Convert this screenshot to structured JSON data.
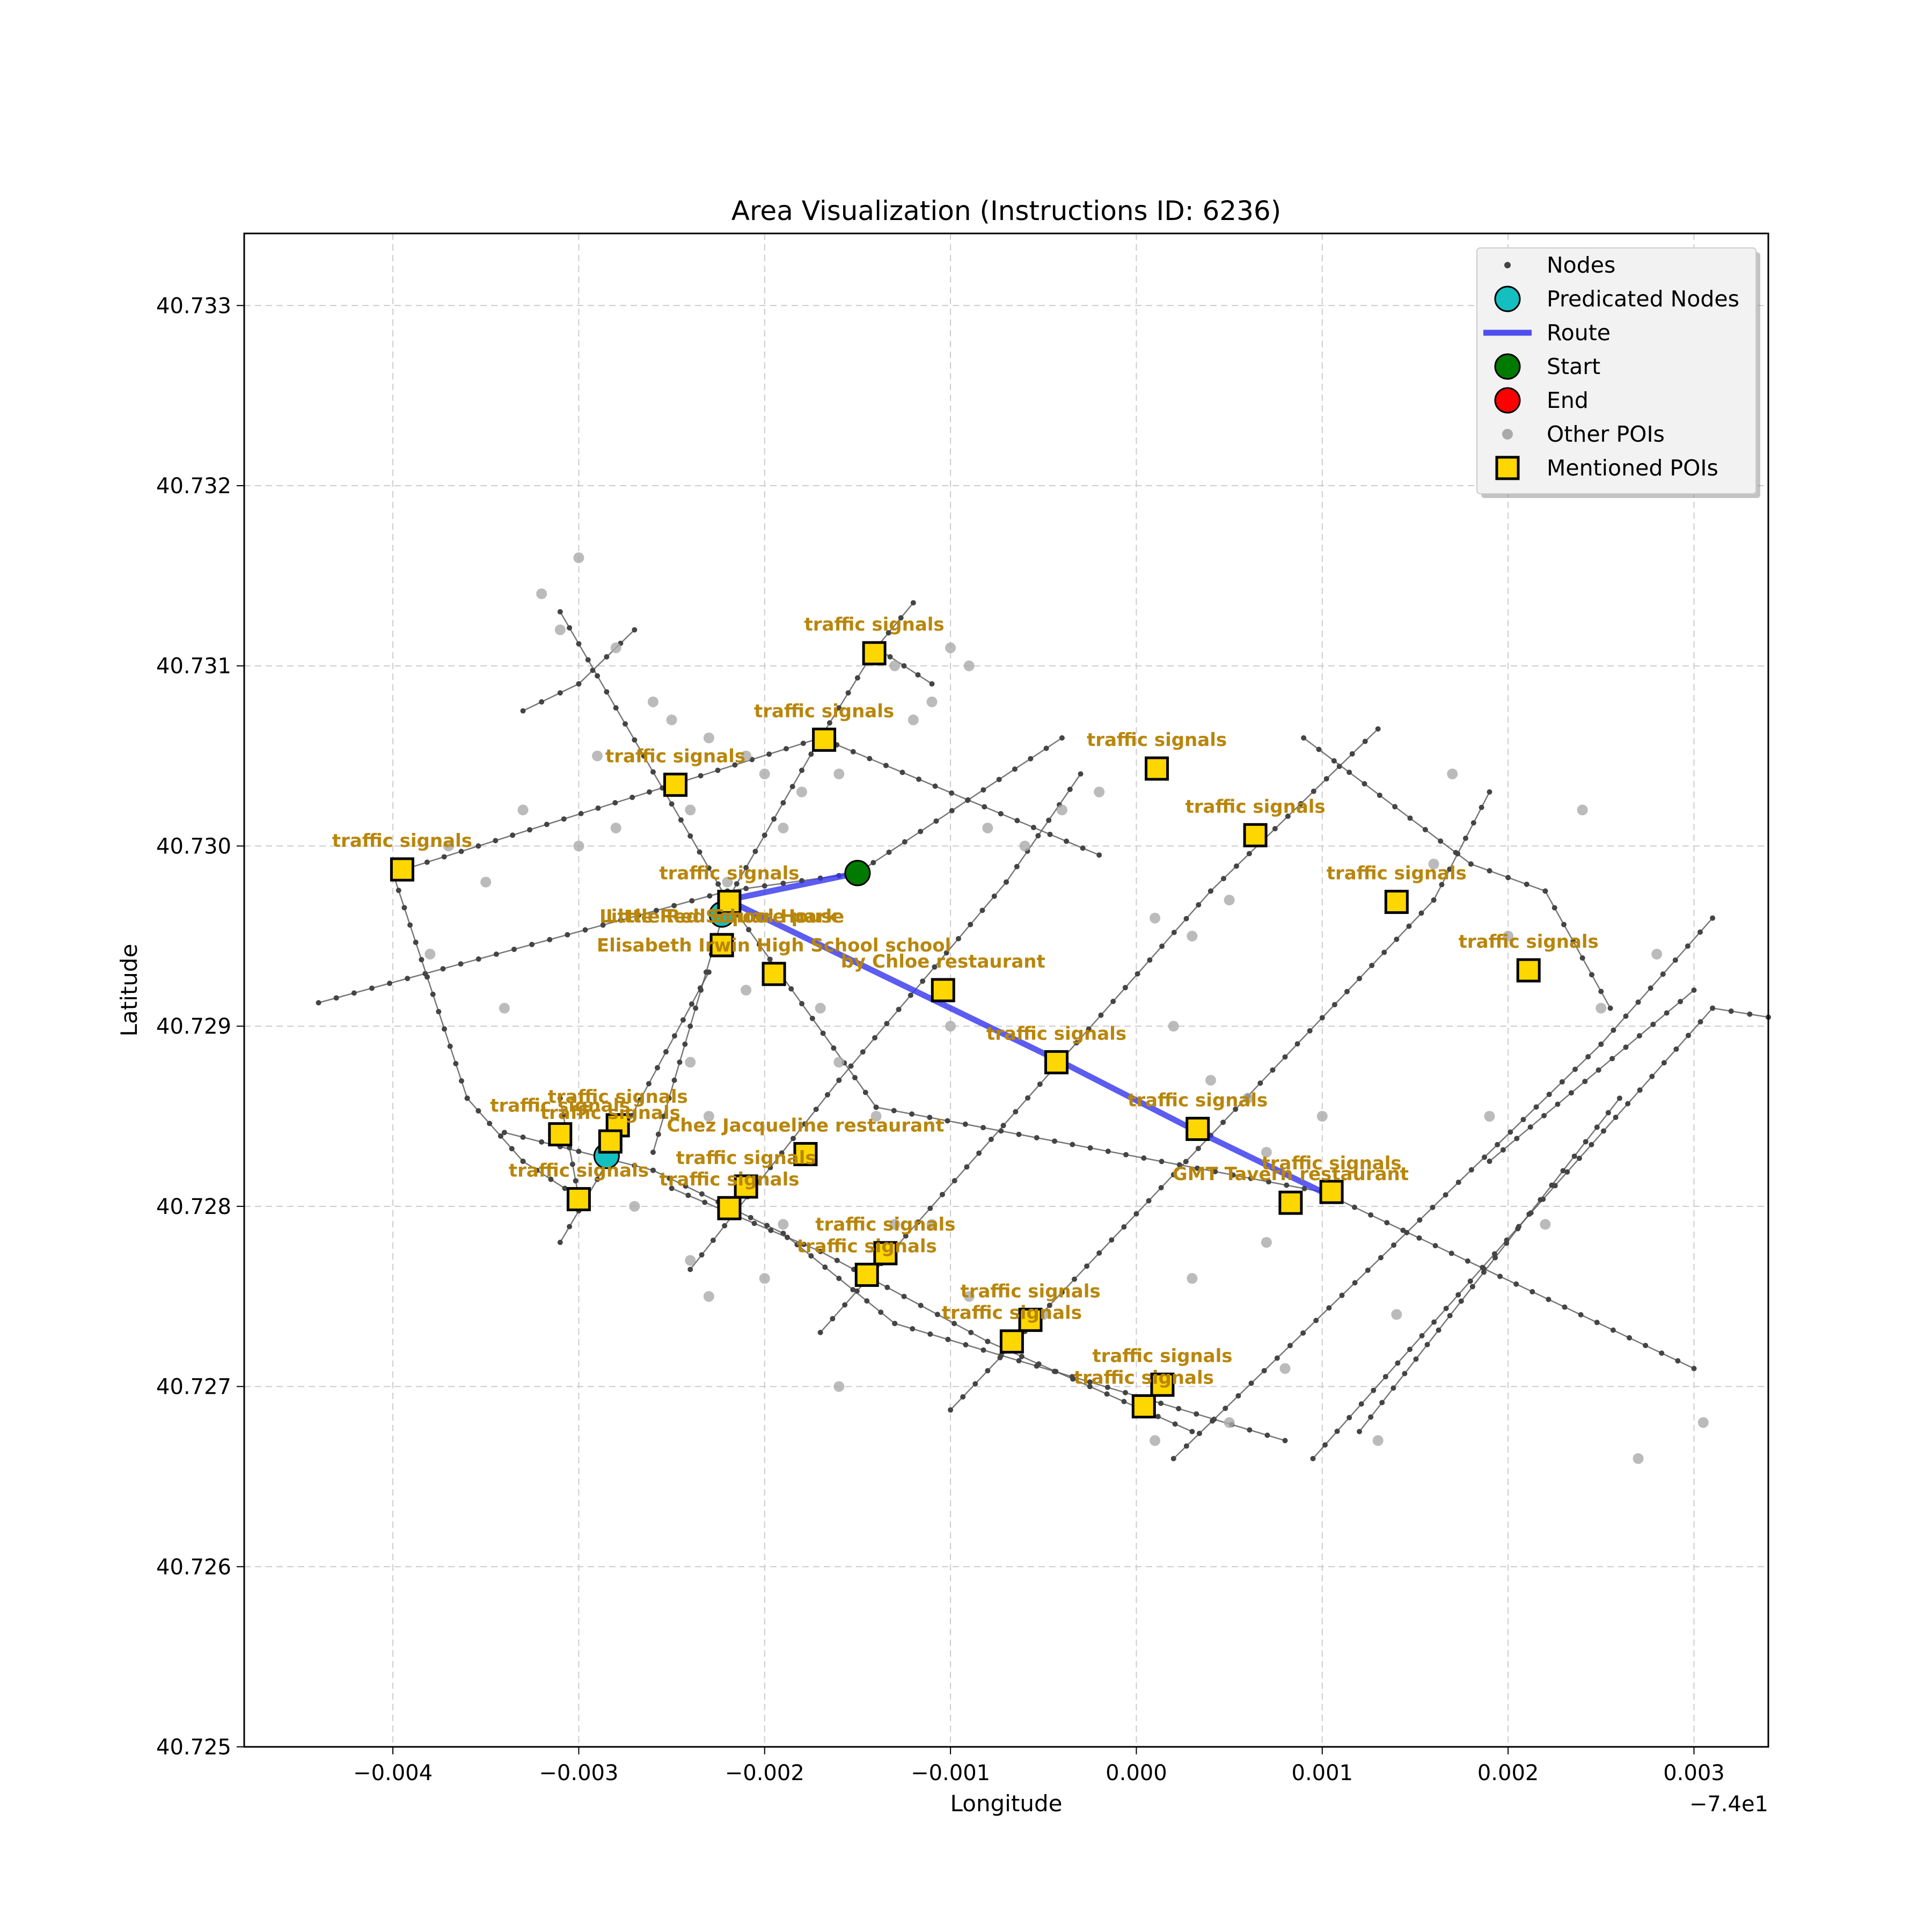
{
  "title": "Area Visualization (Instructions ID: 6236)",
  "xlabel": "Longitude",
  "ylabel": "Latitude",
  "x_offset_label": "−7.4e1",
  "x_ticks": [
    "−0.004",
    "−0.003",
    "−0.002",
    "−0.001",
    "0.000",
    "0.001",
    "0.002",
    "0.003"
  ],
  "y_ticks": [
    "40.725",
    "40.726",
    "40.727",
    "40.728",
    "40.729",
    "40.730",
    "40.731",
    "40.732",
    "40.733"
  ],
  "legend": {
    "placement": "top-right",
    "items": [
      {
        "label": "Nodes",
        "icon": "small-dark-dot"
      },
      {
        "label": "Predicated Nodes",
        "icon": "cyan-circle"
      },
      {
        "label": "Route",
        "icon": "blue-line"
      },
      {
        "label": "Start",
        "icon": "green-circle"
      },
      {
        "label": "End",
        "icon": "red-circle"
      },
      {
        "label": "Other POIs",
        "icon": "gray-dot"
      },
      {
        "label": "Mentioned POIs",
        "icon": "gold-square"
      }
    ]
  },
  "colors": {
    "route": "#3333ee",
    "start": "#007a00",
    "end": "#ff0000",
    "predicted": "#14bfbf",
    "poi_fill": "#ffd700",
    "poi_label": "#b8860b",
    "node": "#444444",
    "other_poi": "#aaaaaa",
    "grid": "#cccccc"
  },
  "chart_data": {
    "type": "scatter",
    "xlim": [
      -74.0048,
      -73.9966
    ],
    "ylim": [
      40.725,
      40.7334
    ],
    "x_offset": -74,
    "grid": true,
    "route": [
      [
        -74.0015,
        40.72985
      ],
      [
        -74.0022,
        40.7297
      ],
      [
        -74.0004,
        40.7288
      ],
      [
        -73.9997,
        40.72843
      ],
      [
        -73.999,
        40.72808
      ]
    ],
    "start": [
      -74.0015,
      40.72985
    ],
    "end": null,
    "predicted_nodes": [
      [
        -74.00223,
        40.72962
      ],
      [
        -74.00285,
        40.72828
      ]
    ],
    "mentioned_pois": [
      {
        "label": "traffic signals",
        "lon": -74.00395,
        "lat": 40.72987
      },
      {
        "label": "traffic signals",
        "lon": -74.00248,
        "lat": 40.73034
      },
      {
        "label": "traffic signals",
        "lon": -74.00168,
        "lat": 40.73059
      },
      {
        "label": "traffic signals",
        "lon": -74.00141,
        "lat": 40.73107
      },
      {
        "label": "traffic signals",
        "lon": -73.99989,
        "lat": 40.73043
      },
      {
        "label": "traffic signals",
        "lon": -73.99936,
        "lat": 40.73006
      },
      {
        "label": "traffic signals",
        "lon": -73.9986,
        "lat": 40.72969
      },
      {
        "label": "traffic signals",
        "lon": -73.99789,
        "lat": 40.72931
      },
      {
        "label": "traffic signals",
        "lon": -74.00219,
        "lat": 40.72969
      },
      {
        "label": "Little Red Square   park",
        "lon": -74.00223,
        "lat": 40.72945
      },
      {
        "label": "Little Red School House",
        "lon": -74.00223,
        "lat": 40.72945
      },
      {
        "label": "Elisabeth Irwin High School school",
        "lon": -74.00195,
        "lat": 40.72929
      },
      {
        "label": "by Chloe restaurant",
        "lon": -74.00104,
        "lat": 40.7292
      },
      {
        "label": "traffic signals",
        "lon": -74.00043,
        "lat": 40.7288
      },
      {
        "label": "traffic signals",
        "lon": -73.99967,
        "lat": 40.72843
      },
      {
        "label": "traffic signals",
        "lon": -73.99895,
        "lat": 40.72808
      },
      {
        "label": "GMT Tavern restaurant",
        "lon": -73.99917,
        "lat": 40.72802
      },
      {
        "label": "traffic signals",
        "lon": -74.0031,
        "lat": 40.7284
      },
      {
        "label": "traffic signals",
        "lon": -74.00279,
        "lat": 40.72845
      },
      {
        "label": "traffic signals",
        "lon": -74.00283,
        "lat": 40.72836
      },
      {
        "label": "traffic signals",
        "lon": -74.003,
        "lat": 40.72804
      },
      {
        "label": "Chez Jacqueline restaurant",
        "lon": -74.00178,
        "lat": 40.72829
      },
      {
        "label": "traffic signals",
        "lon": -74.0021,
        "lat": 40.72811
      },
      {
        "label": "traffic signals",
        "lon": -74.00219,
        "lat": 40.72799
      },
      {
        "label": "traffic signals",
        "lon": -74.00135,
        "lat": 40.72774
      },
      {
        "label": "traffic signals",
        "lon": -74.00145,
        "lat": 40.72762
      },
      {
        "label": "traffic signals",
        "lon": -74.00057,
        "lat": 40.72737
      },
      {
        "label": "traffic signals",
        "lon": -74.00067,
        "lat": 40.72725
      },
      {
        "label": "traffic signals",
        "lon": -73.99986,
        "lat": 40.72701
      },
      {
        "label": "traffic signals",
        "lon": -73.99996,
        "lat": 40.72689
      }
    ],
    "streets": [
      [
        [
          -74.0044,
          40.72913
        ],
        [
          -74.0022,
          40.72975
        ],
        [
          -74.0015,
          40.72985
        ],
        [
          -74.0004,
          40.7306
        ]
      ],
      [
        [
          -74.004,
          40.72985
        ],
        [
          -74.0017,
          40.7306
        ],
        [
          -74.0002,
          40.72995
        ]
      ],
      [
        [
          -74.0031,
          40.7313
        ],
        [
          -74.0022,
          40.7297
        ],
        [
          -74.0014,
          40.72855
        ],
        [
          -73.999,
          40.72808
        ],
        [
          -73.997,
          40.7271
        ]
      ],
      [
        [
          -74.0033,
          40.73075
        ],
        [
          -74.003,
          40.7309
        ],
        [
          -74.0027,
          40.7312
        ]
      ],
      [
        [
          -74.004,
          40.72985
        ],
        [
          -74.0036,
          40.7286
        ],
        [
          -74.0033,
          40.72825
        ],
        [
          -74.003,
          40.72805
        ],
        [
          -74.0031,
          40.7286
        ]
      ],
      [
        [
          -74.0034,
          40.72841
        ],
        [
          -74.0026,
          40.7282
        ],
        [
          -74.0019,
          40.72785
        ],
        [
          -74.0013,
          40.72735
        ],
        [
          -73.9992,
          40.7267
        ]
      ],
      [
        [
          -74.0025,
          40.7281
        ],
        [
          -74.0017,
          40.72775
        ],
        [
          -74.0008,
          40.72725
        ],
        [
          -73.9997,
          40.72675
        ]
      ],
      [
        [
          -74.0023,
          40.7293
        ],
        [
          -74.0029,
          40.72815
        ],
        [
          -74.0031,
          40.7278
        ]
      ],
      [
        [
          -74.0026,
          40.7283
        ],
        [
          -74.0022,
          40.7297
        ],
        [
          -74.0017,
          40.7306
        ],
        [
          -74.0014,
          40.7311
        ],
        [
          -74.0012,
          40.73135
        ]
      ],
      [
        [
          -74.0014,
          40.7311
        ],
        [
          -74.0011,
          40.7309
        ]
      ],
      [
        [
          -74.0024,
          40.72765
        ],
        [
          -74.0016,
          40.7287
        ],
        [
          -74.0007,
          40.7298
        ],
        [
          -74.0003,
          40.7304
        ]
      ],
      [
        [
          -74.0017,
          40.7273
        ],
        [
          -73.9996,
          40.72975
        ],
        [
          -73.9987,
          40.73065
        ]
      ],
      [
        [
          -73.9991,
          40.7306
        ],
        [
          -73.9982,
          40.7299
        ],
        [
          -73.9978,
          40.72975
        ],
        [
          -73.99745,
          40.7291
        ]
      ],
      [
        [
          -74.001,
          40.72687
        ],
        [
          -73.9984,
          40.7297
        ],
        [
          -73.9981,
          40.7303
        ]
      ],
      [
        [
          -73.9998,
          40.7266
        ],
        [
          -73.9975,
          40.7289
        ],
        [
          -73.9969,
          40.7296
        ]
      ],
      [
        [
          -73.99905,
          40.7266
        ],
        [
          -73.9969,
          40.7291
        ],
        [
          -73.9966,
          40.72905
        ]
      ],
      [
        [
          -73.9988,
          40.72675
        ],
        [
          -73.9974,
          40.7286
        ]
      ],
      [
        [
          -73.9981,
          40.72825
        ],
        [
          -73.997,
          40.7292
        ]
      ]
    ],
    "other_pois": [
      [
        -74.0032,
        40.7314
      ],
      [
        -74.0031,
        40.7312
      ],
      [
        -74.003,
        40.7316
      ],
      [
        -74.0029,
        40.7305
      ],
      [
        -74.0028,
        40.7311
      ],
      [
        -74.0026,
        40.7308
      ],
      [
        -74.0025,
        40.7307
      ],
      [
        -74.0023,
        40.7306
      ],
      [
        -74.0021,
        40.7305
      ],
      [
        -74.002,
        40.7304
      ],
      [
        -74.0018,
        40.7303
      ],
      [
        -74.0016,
        40.7304
      ],
      [
        -74.0013,
        40.731
      ],
      [
        -74.0012,
        40.7307
      ],
      [
        -74.001,
        40.7311
      ],
      [
        -74.0011,
        40.7308
      ],
      [
        -74.0009,
        40.731
      ],
      [
        -74.0037,
        40.73
      ],
      [
        -74.0035,
        40.7298
      ],
      [
        -74.0033,
        40.7302
      ],
      [
        -74.003,
        40.73
      ],
      [
        -74.0028,
        40.7301
      ],
      [
        -74.0024,
        40.7302
      ],
      [
        -74.0022,
        40.7298
      ],
      [
        -74.0019,
        40.7301
      ],
      [
        -74.0024,
        40.7288
      ],
      [
        -74.0023,
        40.7285
      ],
      [
        -74.0021,
        40.7292
      ],
      [
        -74.0017,
        40.7291
      ],
      [
        -74.0016,
        40.7288
      ],
      [
        -74.0034,
        40.7291
      ],
      [
        -74.0038,
        40.7294
      ],
      [
        -74.0027,
        40.728
      ],
      [
        -74.0024,
        40.7277
      ],
      [
        -74.0023,
        40.7275
      ],
      [
        -74.002,
        40.7276
      ],
      [
        -74.0018,
        40.7283
      ],
      [
        -74.0014,
        40.7285
      ],
      [
        -74.0013,
        40.7279
      ],
      [
        -74.001,
        40.729
      ],
      [
        -74.0008,
        40.7301
      ],
      [
        -74.0006,
        40.73
      ],
      [
        -74.0004,
        40.7302
      ],
      [
        -74.0002,
        40.7303
      ],
      [
        -73.9999,
        40.7296
      ],
      [
        -73.9997,
        40.7295
      ],
      [
        -73.9995,
        40.7297
      ],
      [
        -73.9998,
        40.729
      ],
      [
        -73.9996,
        40.7287
      ],
      [
        -73.9994,
        40.7286
      ],
      [
        -73.9993,
        40.7283
      ],
      [
        -73.999,
        40.7285
      ],
      [
        -73.9986,
        40.7297
      ],
      [
        -73.9984,
        40.7299
      ],
      [
        -73.9983,
        40.7304
      ],
      [
        -73.998,
        40.7295
      ],
      [
        -73.9976,
        40.7302
      ],
      [
        -73.9972,
        40.7294
      ],
      [
        -73.9975,
        40.7291
      ],
      [
        -73.9978,
        40.7279
      ],
      [
        -73.9981,
        40.7285
      ],
      [
        -73.9986,
        40.7274
      ],
      [
        -73.9993,
        40.7278
      ],
      [
        -73.9997,
        40.7276
      ],
      [
        -73.9999,
        40.7267
      ],
      [
        -73.9995,
        40.7268
      ],
      [
        -73.9992,
        40.7271
      ],
      [
        -73.9987,
        40.7267
      ],
      [
        -73.9973,
        40.7266
      ],
      [
        -73.99695,
        40.7268
      ],
      [
        -74.0005,
        40.7274
      ],
      [
        -74.0009,
        40.7275
      ],
      [
        -74.0011,
        40.7279
      ],
      [
        -74.0016,
        40.727
      ],
      [
        -74.0019,
        40.7279
      ]
    ]
  }
}
